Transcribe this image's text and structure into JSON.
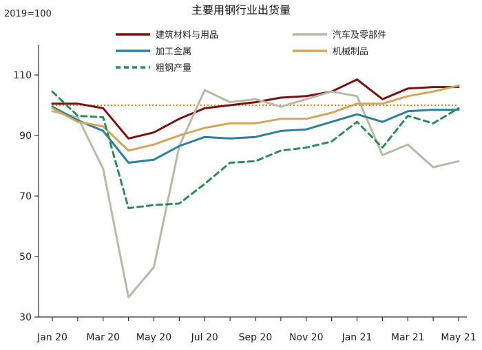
{
  "chart_data": {
    "type": "line",
    "title": "主要用钢行业出货量",
    "unit_label": "2019=100",
    "xlabel": "",
    "ylabel": "",
    "ylim": [
      30,
      120
    ],
    "y_ticks": [
      30,
      50,
      70,
      90,
      110
    ],
    "x": [
      "Jan 20",
      "Feb 20",
      "Mar 20",
      "Apr 20",
      "May 20",
      "Jun 20",
      "Jul 20",
      "Aug 20",
      "Sep 20",
      "Oct 20",
      "Nov 20",
      "Dec 20",
      "Jan 21",
      "Feb 21",
      "Mar 21",
      "Apr 21",
      "May 21"
    ],
    "x_tick_labels": [
      "Jan 20",
      "Mar 20",
      "May 20",
      "Jul 20",
      "Sep 20",
      "Nov 20",
      "Jan 21",
      "Mar 21",
      "May 21"
    ],
    "reference_line": {
      "value": 100,
      "color": "#f07f2a"
    },
    "legend_position": "top",
    "series": [
      {
        "name": "建筑材料与用品",
        "color": "#7a1010",
        "dash": false,
        "values": [
          100.5,
          100.5,
          99,
          89,
          91,
          95.5,
          99,
          100,
          101,
          102.5,
          103,
          104.5,
          108.5,
          102,
          105.5,
          106,
          106
        ]
      },
      {
        "name": "汽车及零部件",
        "color": "#b8b9a9",
        "dash": false,
        "values": [
          98,
          96,
          79,
          36.5,
          46.5,
          86.5,
          105,
          101,
          102,
          99.5,
          102,
          104.5,
          103,
          83.5,
          87,
          79.5,
          81.5
        ]
      },
      {
        "name": "加工金属",
        "color": "#2e7f9c",
        "dash": false,
        "values": [
          99.5,
          95,
          91.5,
          81,
          82,
          86.5,
          89.5,
          89,
          89.5,
          91.5,
          92,
          94.5,
          97,
          94.5,
          98,
          98.5,
          98.5
        ]
      },
      {
        "name": "机械制品",
        "color": "#d4a55a",
        "dash": false,
        "values": [
          99,
          94.5,
          93,
          85,
          87,
          90,
          92.5,
          94,
          94,
          95.5,
          95.5,
          97.5,
          100.5,
          100.5,
          103,
          104.5,
          106.5
        ]
      },
      {
        "name": "粗钢产量",
        "color": "#2e8b57",
        "dash": true,
        "values": [
          104.5,
          96.5,
          96,
          66,
          67,
          67.5,
          74,
          81,
          81.5,
          85,
          86,
          88,
          94.5,
          86,
          96.5,
          94,
          99
        ]
      }
    ]
  }
}
